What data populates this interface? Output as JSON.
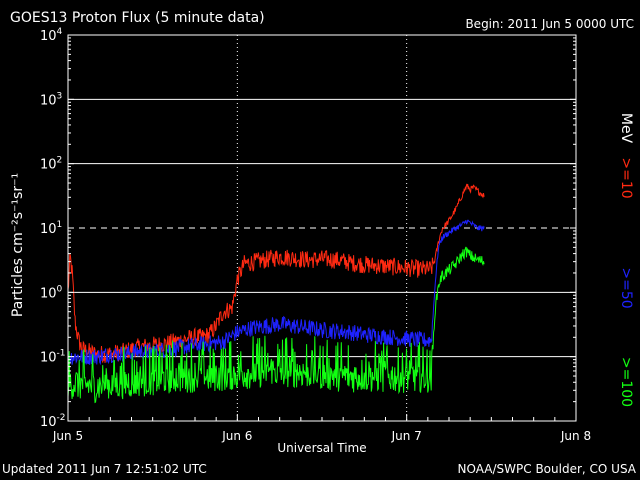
{
  "header": {
    "title": "GOES13 Proton Flux (5 minute data)",
    "begin": "Begin: 2011 Jun 5 0000 UTC"
  },
  "footer": {
    "updated": "Updated 2011 Jun  7 12:51:02 UTC",
    "credit": "NOAA/SWPC Boulder, CO USA"
  },
  "colors": {
    "background": "#000000",
    "axes": "#ffffff",
    "s10": "#ff2a12",
    "s50": "#1e22ff",
    "s100": "#12ff12"
  },
  "chart_data": {
    "type": "line",
    "title": "GOES13 Proton Flux (5 minute data)",
    "xlabel": "Universal Time",
    "ylabel": "Particles cm⁻²s⁻¹sr⁻¹",
    "yscale": "log",
    "ylim": [
      0.01,
      10000
    ],
    "xlim": [
      0,
      72
    ],
    "x_unit": "hours since 2011 Jun 5 0000 UTC",
    "x_ticks": [
      {
        "value": 0,
        "label": "Jun 5"
      },
      {
        "value": 24,
        "label": "Jun 6"
      },
      {
        "value": 48,
        "label": "Jun 7"
      },
      {
        "value": 72,
        "label": "Jun 8"
      }
    ],
    "y_ticks": [
      {
        "exp": "-2",
        "value": 0.01
      },
      {
        "exp": "-1",
        "value": 0.1
      },
      {
        "exp": "0",
        "value": 1
      },
      {
        "exp": "1",
        "value": 10
      },
      {
        "exp": "2",
        "value": 100
      },
      {
        "exp": "3",
        "value": 1000
      },
      {
        "exp": "4",
        "value": 10000
      }
    ],
    "threshold": {
      "value": 10,
      "style": "dashed"
    },
    "gridlines_y": [
      0.1,
      1,
      100,
      1000
    ],
    "legend": {
      "unit": "MeV",
      "entries": [
        {
          "label": ">=10",
          "series": "s10"
        },
        {
          "label": ">=50",
          "series": "s50"
        },
        {
          "label": ">=100",
          "series": "s100"
        }
      ],
      "placement": "right"
    },
    "series": [
      {
        "id": "s10",
        "name": ">=10 MeV",
        "x": [
          0,
          0.3,
          0.6,
          1,
          1.5,
          2,
          4,
          6,
          8,
          10,
          12,
          14,
          16,
          18,
          19,
          20,
          21,
          22,
          23,
          23.3,
          24,
          25,
          26,
          28,
          30,
          32,
          34,
          36,
          38,
          40,
          42,
          44,
          46,
          48,
          50,
          51.5,
          52,
          52.5,
          53,
          54,
          55,
          56,
          56.5,
          57,
          57.5,
          58,
          59
        ],
        "y": [
          1.0,
          3.5,
          2.0,
          0.35,
          0.18,
          0.13,
          0.11,
          0.11,
          0.12,
          0.14,
          0.15,
          0.16,
          0.18,
          0.2,
          0.2,
          0.22,
          0.3,
          0.5,
          0.55,
          0.6,
          1.6,
          2.8,
          2.9,
          3.2,
          3.6,
          3.4,
          3.2,
          3.3,
          3.2,
          2.9,
          2.7,
          2.6,
          2.5,
          2.4,
          2.3,
          2.3,
          3.2,
          6.0,
          9.5,
          13,
          20,
          35,
          45,
          40,
          42,
          38,
          32
        ]
      },
      {
        "id": "s50",
        "name": ">=50 MeV",
        "x": [
          0,
          2,
          4,
          6,
          8,
          10,
          12,
          14,
          16,
          18,
          20,
          22,
          24,
          26,
          28,
          30,
          32,
          34,
          36,
          38,
          40,
          42,
          44,
          46,
          48,
          50,
          51.5,
          52,
          52.5,
          53,
          54,
          55,
          56,
          56.5,
          57,
          58,
          59
        ],
        "y": [
          0.1,
          0.1,
          0.1,
          0.11,
          0.11,
          0.12,
          0.12,
          0.13,
          0.14,
          0.15,
          0.16,
          0.17,
          0.24,
          0.28,
          0.3,
          0.32,
          0.3,
          0.28,
          0.26,
          0.25,
          0.24,
          0.22,
          0.21,
          0.2,
          0.19,
          0.18,
          0.18,
          1.2,
          5.0,
          7.0,
          8.5,
          10.0,
          11.5,
          13.0,
          12.0,
          10.0,
          9.8
        ]
      },
      {
        "id": "s100",
        "name": ">=100 MeV",
        "x": [
          0,
          4,
          8,
          12,
          16,
          20,
          24,
          28,
          32,
          36,
          40,
          44,
          48,
          51.5,
          52,
          52.5,
          53,
          54,
          55,
          56,
          56.5,
          57,
          58,
          59
        ],
        "y": [
          0.04,
          0.035,
          0.04,
          0.045,
          0.05,
          0.05,
          0.055,
          0.06,
          0.06,
          0.055,
          0.05,
          0.05,
          0.05,
          0.05,
          0.5,
          1.3,
          1.8,
          2.2,
          2.8,
          4.0,
          4.3,
          3.7,
          3.2,
          3.0
        ]
      }
    ]
  }
}
